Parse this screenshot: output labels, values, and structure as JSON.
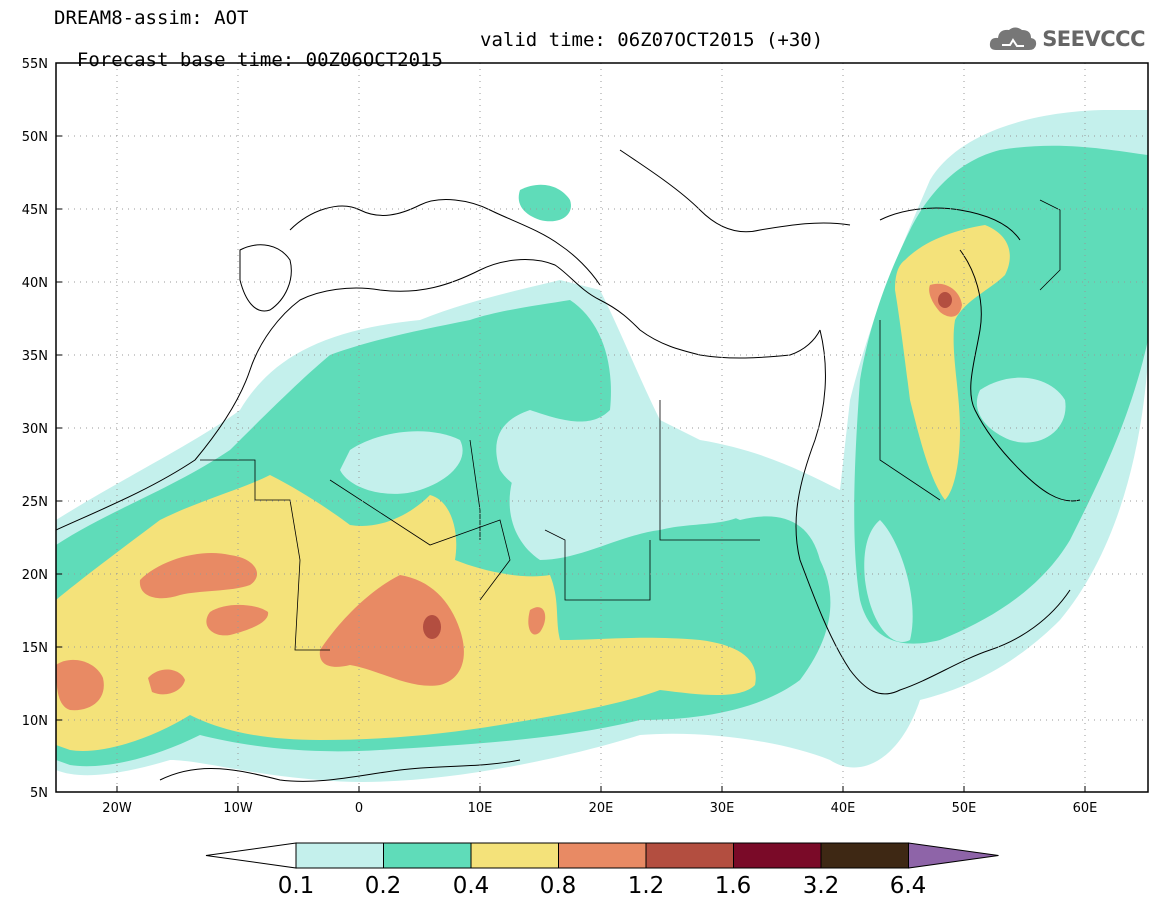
{
  "header": {
    "title": "DREAM8-assim: AOT",
    "base_time": "Forecast base time: 00Z06OCT2015",
    "valid_time": "valid time: 06Z07OCT2015 (+30)"
  },
  "logo": {
    "text": "SEEVCCC",
    "icon": "cloud-icon"
  },
  "map": {
    "lat_labels": [
      "55N",
      "50N",
      "45N",
      "40N",
      "35N",
      "30N",
      "25N",
      "20N",
      "15N",
      "10N",
      "5N"
    ],
    "lon_labels": [
      "20W",
      "10W",
      "0",
      "10E",
      "20E",
      "30E",
      "40E",
      "50E",
      "60E"
    ],
    "extent": {
      "lon": [
        -25,
        65
      ],
      "lat": [
        5,
        55
      ]
    }
  },
  "colorbar": {
    "labels": [
      "0.1",
      "0.2",
      "0.4",
      "0.8",
      "1.2",
      "1.6",
      "3.2",
      "6.4"
    ],
    "colors": [
      "#ffffff",
      "#c4f0ec",
      "#5fdcb9",
      "#f4e27a",
      "#e88a64",
      "#b34e40",
      "#7a0a28",
      "#3e2814",
      "#8e64a8"
    ]
  }
}
